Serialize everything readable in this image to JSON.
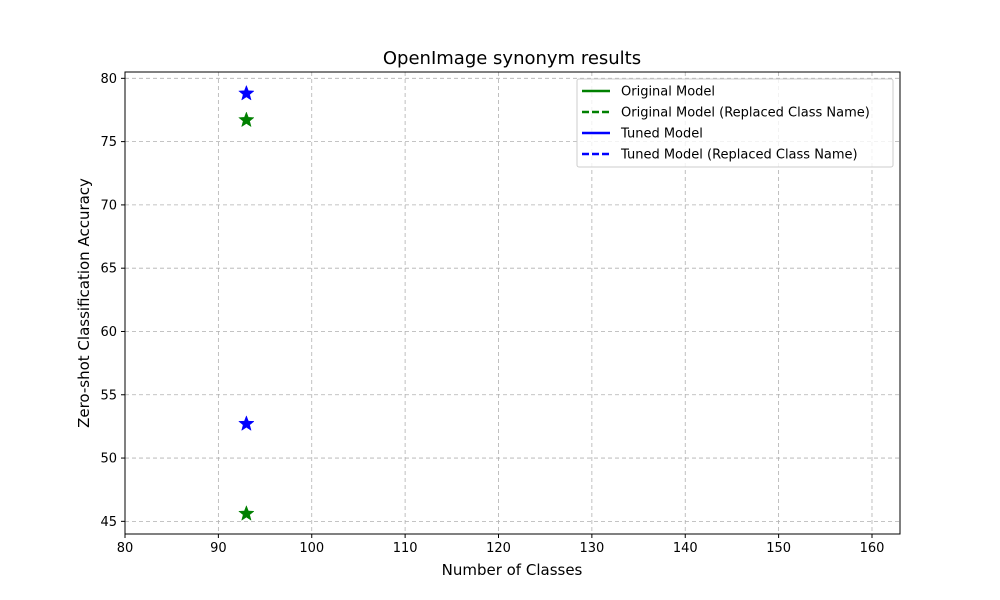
{
  "chart_data": {
    "type": "scatter",
    "title": "OpenImage synonym results",
    "xlabel": "Number of Classes",
    "ylabel": "Zero-shot Classification Accuracy",
    "xlim": [
      80,
      163
    ],
    "ylim": [
      44,
      80.5
    ],
    "xticks": [
      80,
      90,
      100,
      110,
      120,
      130,
      140,
      150,
      160
    ],
    "yticks": [
      45,
      50,
      55,
      60,
      65,
      70,
      75,
      80
    ],
    "grid": true,
    "legend_position": "top-right",
    "legend": [
      {
        "label": "Original Model",
        "color": "#008000",
        "style": "solid"
      },
      {
        "label": "Original Model (Replaced Class Name)",
        "color": "#008000",
        "style": "dashed"
      },
      {
        "label": "Tuned Model",
        "color": "#0000ff",
        "style": "solid"
      },
      {
        "label": "Tuned Model (Replaced Class Name)",
        "color": "#0000ff",
        "style": "dashed"
      }
    ],
    "series": [
      {
        "name": "Original Model",
        "color": "#008000",
        "marker": "star",
        "x": [
          93
        ],
        "y": [
          76.7
        ]
      },
      {
        "name": "Original Model (Replaced Class Name)",
        "color": "#008000",
        "marker": "star",
        "x": [
          93
        ],
        "y": [
          45.6
        ]
      },
      {
        "name": "Tuned Model",
        "color": "#0000ff",
        "marker": "star",
        "x": [
          93
        ],
        "y": [
          78.8
        ]
      },
      {
        "name": "Tuned Model (Replaced Class Name)",
        "color": "#0000ff",
        "marker": "star",
        "x": [
          93
        ],
        "y": [
          52.7
        ]
      }
    ]
  }
}
